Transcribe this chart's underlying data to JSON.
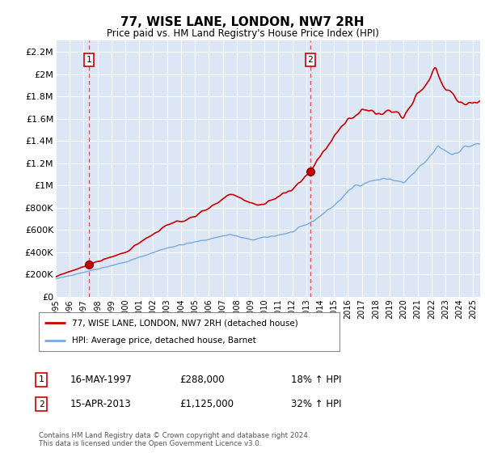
{
  "title": "77, WISE LANE, LONDON, NW7 2RH",
  "subtitle": "Price paid vs. HM Land Registry's House Price Index (HPI)",
  "ylabel_ticks": [
    "£0",
    "£200K",
    "£400K",
    "£600K",
    "£800K",
    "£1M",
    "£1.2M",
    "£1.4M",
    "£1.6M",
    "£1.8M",
    "£2M",
    "£2.2M"
  ],
  "ytick_values": [
    0,
    200000,
    400000,
    600000,
    800000,
    1000000,
    1200000,
    1400000,
    1600000,
    1800000,
    2000000,
    2200000
  ],
  "ylim": [
    0,
    2300000
  ],
  "xlim_start": 1995.0,
  "xlim_end": 2025.5,
  "sale1_x": 1997.37,
  "sale1_y": 288000,
  "sale2_x": 2013.29,
  "sale2_y": 1125000,
  "sale1_label": "1",
  "sale2_label": "2",
  "red_color": "#cc0000",
  "blue_color": "#7aaadd",
  "dashed_red": "#dd4444",
  "bg_color": "#dce6f5",
  "legend_line1": "77, WISE LANE, LONDON, NW7 2RH (detached house)",
  "legend_line2": "HPI: Average price, detached house, Barnet",
  "annot1_date": "16-MAY-1997",
  "annot1_price": "£288,000",
  "annot1_hpi": "18% ↑ HPI",
  "annot2_date": "15-APR-2013",
  "annot2_price": "£1,125,000",
  "annot2_hpi": "32% ↑ HPI",
  "footer": "Contains HM Land Registry data © Crown copyright and database right 2024.\nThis data is licensed under the Open Government Licence v3.0.",
  "xtick_years": [
    1995,
    1996,
    1997,
    1998,
    1999,
    2000,
    2001,
    2002,
    2003,
    2004,
    2005,
    2006,
    2007,
    2008,
    2009,
    2010,
    2011,
    2012,
    2013,
    2014,
    2015,
    2016,
    2017,
    2018,
    2019,
    2020,
    2021,
    2022,
    2023,
    2024,
    2025
  ]
}
